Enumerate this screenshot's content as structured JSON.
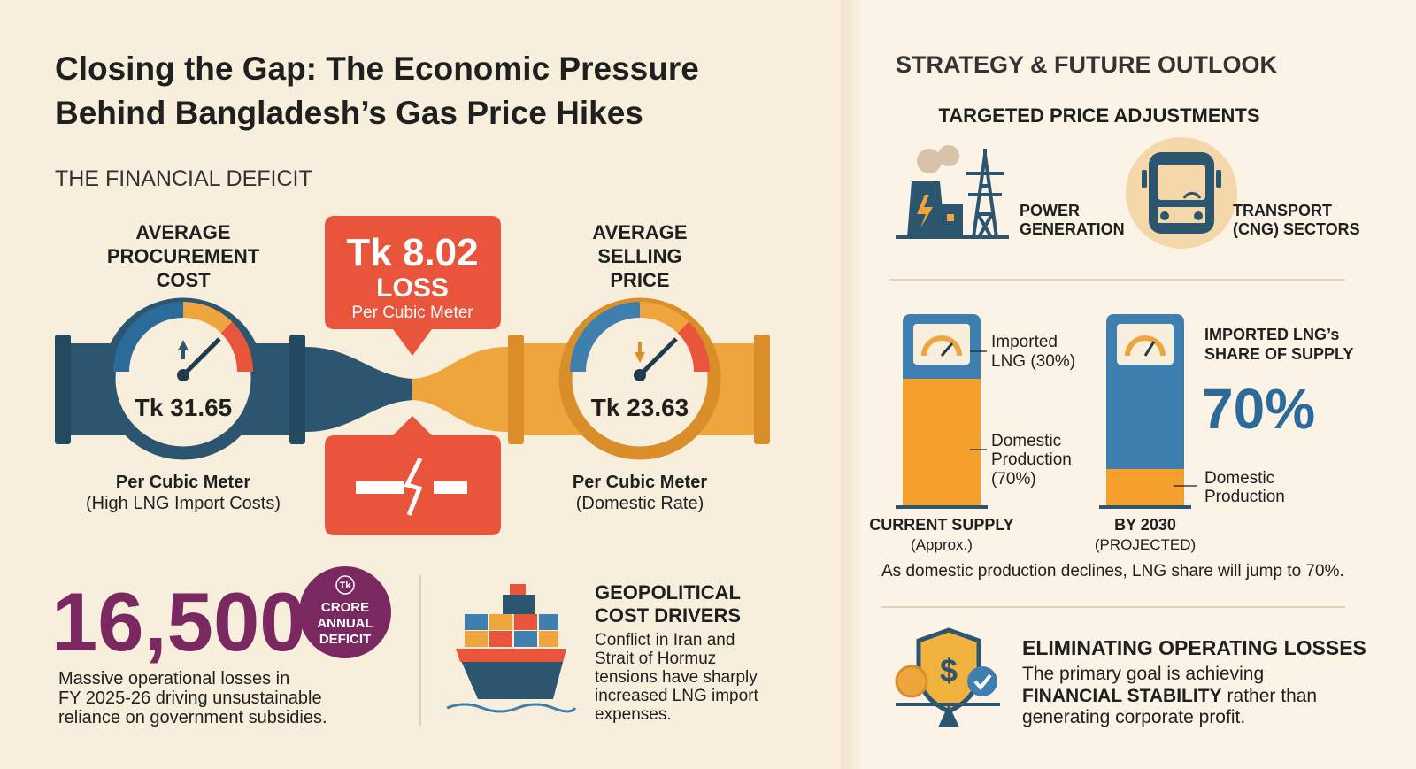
{
  "title": {
    "lines": [
      "Closing the Gap: The Economic Pressure",
      "Behind Bangladesh’s Gas Price Hikes"
    ]
  },
  "deficit": {
    "heading": "THE FINANCIAL DEFICIT",
    "procurement": {
      "label_lines": [
        "AVERAGE",
        "PROCUREMENT",
        "COST"
      ],
      "value": "Tk 31.65",
      "unit": "Per Cubic Meter",
      "note": "(High LNG Import Costs)"
    },
    "selling": {
      "label_lines": [
        "AVERAGE",
        "SELLING",
        "PRICE"
      ],
      "value": "Tk 23.63",
      "unit": "Per Cubic Meter",
      "note": "(Domestic Rate)"
    },
    "loss": {
      "amount": "Tk 8.02",
      "label": "LOSS",
      "unit": "Per Cubic Meter"
    }
  },
  "annual": {
    "number": "16,500",
    "badge_symbol": "Tk",
    "badge_lines": [
      "CRORE",
      "ANNUAL",
      "DEFICIT"
    ],
    "description_lines": [
      "Massive operational losses in",
      "FY 2025-26 driving unsustainable",
      "reliance on government subsidies."
    ]
  },
  "geopolitical": {
    "heading_lines": [
      "GEOPOLITICAL",
      "COST DRIVERS"
    ],
    "body_lines": [
      "Conflict in Iran and",
      "Strait of Hormuz",
      "tensions have sharply",
      "increased LNG import",
      "expenses."
    ]
  },
  "strategy": {
    "heading": "STRATEGY & FUTURE OUTLOOK",
    "targeted": {
      "heading": "TARGETED PRICE ADJUSTMENTS",
      "sectors": [
        {
          "lines": [
            "POWER",
            "GENERATION"
          ]
        },
        {
          "lines": [
            "TRANSPORT",
            "(CNG) SECTORS"
          ]
        }
      ]
    },
    "supply": {
      "current": {
        "label": "CURRENT SUPPLY",
        "sub": "(Approx.)",
        "imported_lines": [
          "Imported",
          "LNG (30%)"
        ],
        "domestic_lines": [
          "Domestic",
          "Production",
          "(70%)"
        ]
      },
      "projected": {
        "label": "BY 2030",
        "sub": "(PROJECTED)",
        "share_heading_lines": [
          "IMPORTED LNG’s",
          "SHARE OF SUPPLY"
        ],
        "share": "70%",
        "domestic_lines": [
          "Domestic",
          "Production"
        ]
      },
      "note": "As domestic production declines, LNG share will jump to 70%."
    },
    "losses": {
      "heading": "ELIMINATING OPERATING LOSSES",
      "line1": "The primary goal is achieving",
      "line2_bold": "FINANCIAL STABILITY",
      "line2_rest": "rather than",
      "line3": "generating corporate profit."
    }
  }
}
